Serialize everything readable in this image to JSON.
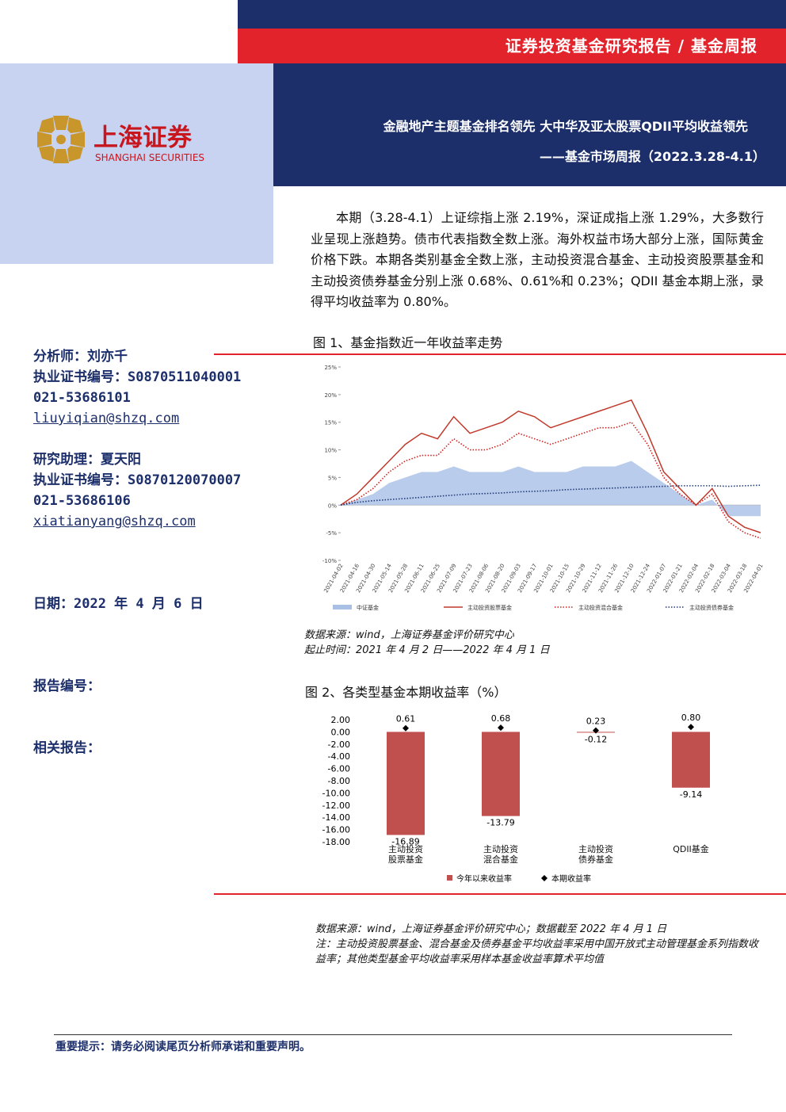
{
  "header": {
    "banner": "证券投资基金研究报告 / 基金周报",
    "title": "金融地产主题基金排名领先 大中华及亚太股票QDII平均收益领先",
    "subtitle": "——基金市场周报（2022.3.28-4.1）"
  },
  "logo": {
    "cn": "上海证券",
    "en": "SHANGHAI SECURITIES"
  },
  "summary": "本期（3.28-4.1）上证综指上涨 2.19%，深证成指上涨 1.29%，大多数行业呈现上涨趋势。债市代表指数全数上涨。海外权益市场大部分上涨，国际黄金价格下跌。本期各类别基金全数上涨，主动投资混合基金、主动投资股票基金和主动投资债券基金分别上涨 0.68%、0.61%和 0.23%；QDII 基金本期上涨，录得平均收益率为 0.80%。",
  "analysts": [
    {
      "name": "分析师：刘亦千",
      "cert": "执业证书编号：S0870511040001",
      "phone": "021-53686101",
      "email": "liuyiqian@shzq.com"
    },
    {
      "name": "研究助理：夏天阳",
      "cert": "执业证书编号：S0870120070007",
      "phone": "021-53686106",
      "email": "xiatianyang@shzq.com"
    }
  ],
  "date": "日期：2022 年 4 月 6 日",
  "report_no": "报告编号：",
  "related": "相关报告：",
  "chart_data": [
    {
      "type": "line",
      "title": "图 1、基金指数近一年收益率走势",
      "categories": [
        "2021-04-02",
        "2021-04-16",
        "2021-04-30",
        "2021-05-14",
        "2021-05-28",
        "2021-06-11",
        "2021-06-25",
        "2021-07-09",
        "2021-07-23",
        "2021-08-06",
        "2021-08-20",
        "2021-09-03",
        "2021-09-17",
        "2021-10-01",
        "2021-10-15",
        "2021-10-29",
        "2021-11-12",
        "2021-11-26",
        "2021-12-10",
        "2021-12-24",
        "2022-01-07",
        "2022-01-21",
        "2022-02-04",
        "2022-02-18",
        "2022-03-04",
        "2022-03-18",
        "2022-04-01"
      ],
      "series": [
        {
          "name": "中证基金",
          "color": "#a9bfe6",
          "style": "area",
          "values": [
            0,
            1,
            2,
            4,
            5,
            6,
            6,
            7,
            6,
            6,
            6,
            7,
            6,
            6,
            6,
            7,
            7,
            7,
            8,
            6,
            4,
            2,
            0,
            1,
            -2,
            -2,
            -2
          ]
        },
        {
          "name": "主动投资股票基金",
          "color": "#c0392b",
          "style": "solid",
          "values": [
            0,
            2,
            5,
            8,
            11,
            13,
            12,
            16,
            13,
            14,
            15,
            17,
            16,
            14,
            15,
            16,
            17,
            18,
            19,
            13,
            6,
            3,
            0,
            3,
            -2,
            -4,
            -5
          ]
        },
        {
          "name": "主动投资混合基金",
          "color": "#d0211f",
          "style": "dotted",
          "values": [
            0,
            1,
            3,
            6,
            8,
            9,
            9,
            12,
            10,
            10,
            11,
            13,
            12,
            11,
            12,
            13,
            14,
            14,
            15,
            11,
            5,
            2,
            0,
            2,
            -3,
            -5,
            -6
          ]
        },
        {
          "name": "主动投资债券基金",
          "color": "#1f3a78",
          "style": "dotted",
          "values": [
            0,
            0.5,
            0.8,
            1,
            1.2,
            1.4,
            1.6,
            1.8,
            2,
            2.1,
            2.2,
            2.4,
            2.5,
            2.6,
            2.8,
            2.9,
            3,
            3.1,
            3.2,
            3.3,
            3.4,
            3.5,
            3.5,
            3.5,
            3.4,
            3.5,
            3.6
          ]
        }
      ],
      "ylim": [
        -10,
        25
      ],
      "yticks": [
        {
          "value": -10,
          "label": "-10%"
        },
        {
          "value": -5,
          "label": "-5%"
        },
        {
          "value": 0,
          "label": "0%"
        },
        {
          "value": 5,
          "label": "5%"
        },
        {
          "value": 10,
          "label": "10%"
        },
        {
          "value": 15,
          "label": "15%"
        },
        {
          "value": 20,
          "label": "20%"
        },
        {
          "value": 25,
          "label": "25%"
        }
      ],
      "legend": "bottom",
      "source": [
        "数据来源：wind，上海证券基金评价研究中心",
        "起止时间：2021 年 4 月 2 日——2022 年 4 月 1 日"
      ]
    },
    {
      "type": "bar",
      "title": "图 2、各类型基金本期收益率（%）",
      "categories": [
        "主动投资股票基金",
        "主动投资混合基金",
        "主动投资债券基金",
        "QDII基金"
      ],
      "series": [
        {
          "name": "今年以来收益率",
          "color": "#c0504d",
          "style": "bar",
          "values": [
            -16.89,
            -13.79,
            -0.12,
            -9.14
          ]
        },
        {
          "name": "本期收益率",
          "color": "#000000",
          "style": "marker",
          "values": [
            0.61,
            0.68,
            0.23,
            0.8
          ],
          "value_labels": [
            "0.61",
            "0.68",
            "0.23",
            "0.80"
          ]
        }
      ],
      "ylim": [
        -18,
        2
      ],
      "yticks": [
        {
          "value": 2,
          "label": "2.00"
        },
        {
          "value": 0,
          "label": "0.00"
        },
        {
          "value": -2,
          "label": "-2.00"
        },
        {
          "value": -4,
          "label": "-4.00"
        },
        {
          "value": -6,
          "label": "-6.00"
        },
        {
          "value": -8,
          "label": "-8.00"
        },
        {
          "value": -10,
          "label": "-10.00"
        },
        {
          "value": -12,
          "label": "-12.00"
        },
        {
          "value": -14,
          "label": "-14.00"
        },
        {
          "value": -16,
          "label": "-16.00"
        },
        {
          "value": -18,
          "label": "-18.00"
        }
      ],
      "legend": "bottom",
      "source": [
        "数据来源：wind，上海证券基金评价研究中心；数据截至 2022 年 4 月 1 日",
        "注：主动投资股票基金、混合基金及债券基金平均收益率采用中国开放式主动管理基金系列指数收益率；其他类型基金平均收益率采用样本基金收益率算术平均值"
      ]
    }
  ],
  "footer": "重要提示：请务必阅读尾页分析师承诺和重要声明。"
}
